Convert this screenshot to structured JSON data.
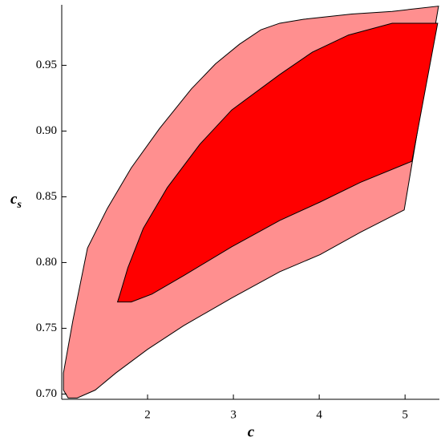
{
  "chart_data": {
    "type": "region",
    "xlabel": "c",
    "ylabel": "c",
    "ylabel_subscript": "s",
    "xlim": [
      1.0,
      5.4
    ],
    "ylim": [
      0.696,
      0.996
    ],
    "xticks": [
      2,
      3,
      4,
      5
    ],
    "yticks": [
      {
        "value": 0.7,
        "label": "0.70"
      },
      {
        "value": 0.75,
        "label": "0.75"
      },
      {
        "value": 0.8,
        "label": "0.80"
      },
      {
        "value": 0.85,
        "label": "0.85"
      },
      {
        "value": 0.9,
        "label": "0.90"
      },
      {
        "value": 0.95,
        "label": "0.95"
      }
    ],
    "series": [
      {
        "color": "#ff8f8f",
        "x": [
          1.075,
          1.18,
          1.39,
          1.63,
          2.0,
          2.42,
          2.98,
          3.54,
          4.01,
          4.48,
          4.99,
          5.39,
          4.85,
          4.38,
          3.82,
          3.54,
          3.32,
          3.07,
          2.79,
          2.51,
          2.14,
          1.81,
          1.53,
          1.3,
          1.13,
          1.02,
          1.02
        ],
        "y": [
          0.697,
          0.697,
          0.703,
          0.716,
          0.734,
          0.752,
          0.773,
          0.793,
          0.806,
          0.823,
          0.84,
          0.995,
          0.991,
          0.989,
          0.985,
          0.982,
          0.977,
          0.966,
          0.951,
          0.932,
          0.902,
          0.872,
          0.841,
          0.811,
          0.756,
          0.716,
          0.703
        ]
      },
      {
        "color": "#ff0000",
        "x": [
          1.65,
          1.81,
          2.05,
          2.42,
          2.98,
          3.54,
          4.01,
          4.48,
          5.08,
          5.38,
          4.85,
          4.34,
          3.92,
          3.54,
          2.98,
          2.61,
          2.23,
          1.95,
          1.77,
          1.67
        ],
        "y": [
          0.77,
          0.77,
          0.776,
          0.79,
          0.812,
          0.832,
          0.846,
          0.861,
          0.877,
          0.982,
          0.982,
          0.973,
          0.96,
          0.943,
          0.916,
          0.89,
          0.857,
          0.826,
          0.796,
          0.774
        ]
      }
    ]
  }
}
